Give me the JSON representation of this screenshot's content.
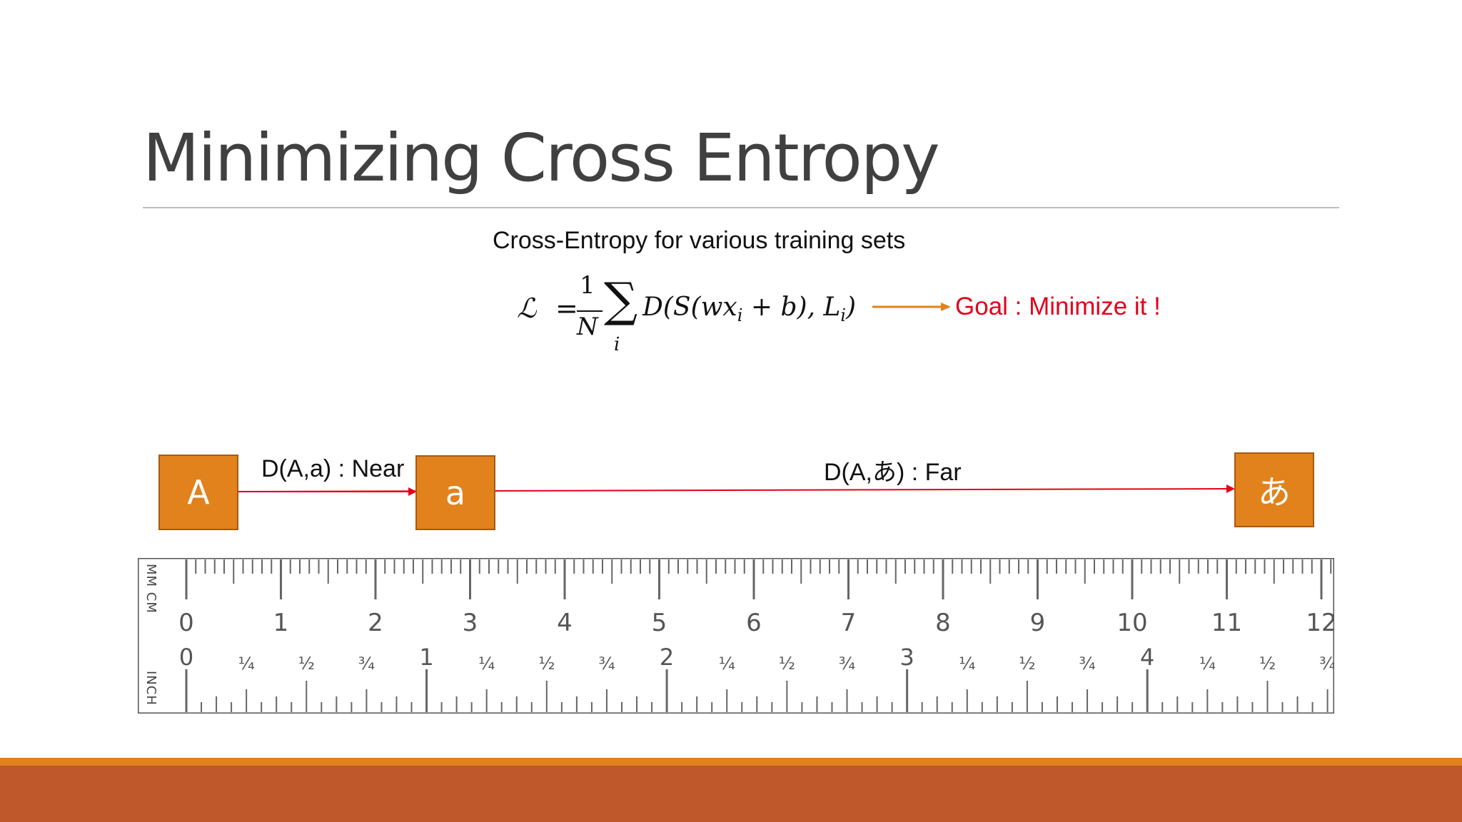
{
  "slide": {
    "title": "Minimizing Cross Entropy",
    "subtitle": "Cross-Entropy for various training sets",
    "formula": {
      "lhs": "ℒ",
      "eq": "=",
      "numerator": "1",
      "denominator": "N",
      "sum_symbol": "∑",
      "sum_index": "i",
      "body_main": "D(S(wx",
      "body_sub1": "i",
      "body_mid": " + b), L",
      "body_sub2": "i",
      "body_end": ")"
    },
    "goal": "Goal : Minimize it !",
    "boxes": {
      "upper_a": "A",
      "lower_a": "a",
      "kana_a": "あ"
    },
    "near_label": "D(A,a) : Near",
    "far_label": "D(A,あ) : Far",
    "ruler": {
      "units_top": "MM CM",
      "units_bottom": "INCH",
      "cm_labels": [
        "0",
        "1",
        "2",
        "3",
        "4",
        "5",
        "6",
        "7",
        "8",
        "9",
        "10",
        "11",
        "12"
      ],
      "inch_labels": [
        "0",
        "1",
        "2",
        "3",
        "4"
      ],
      "fraction_labels": [
        "¼",
        "½",
        "¾"
      ]
    },
    "colors": {
      "box_fill": "#e1821c",
      "arrow_red": "#e3001b",
      "goal_arrow": "#e1821c",
      "footer_orange": "#e1821c",
      "footer_rust": "#bf582b"
    }
  }
}
